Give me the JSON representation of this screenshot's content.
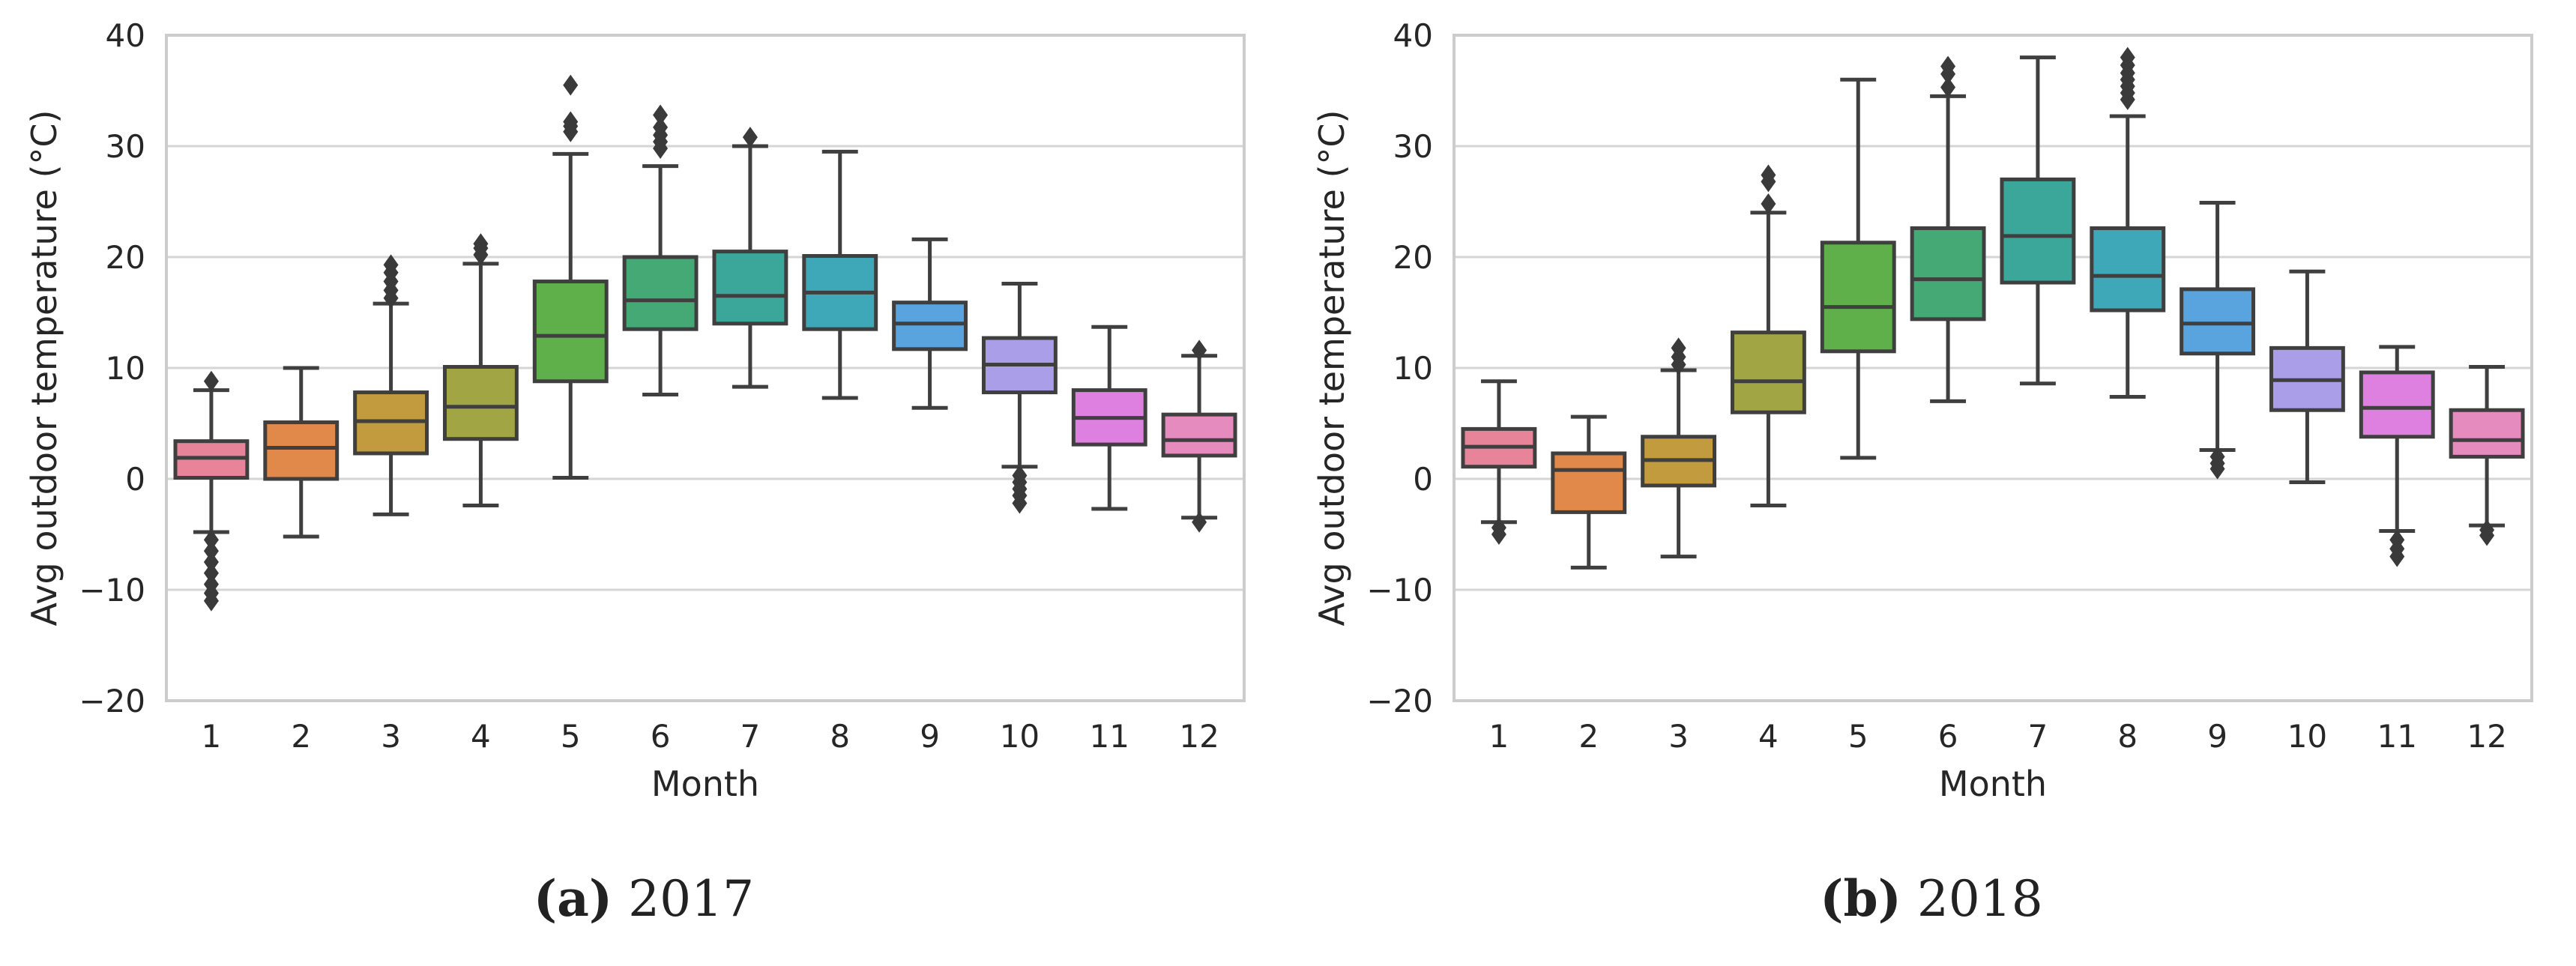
{
  "chart_data": [
    {
      "type": "boxplot",
      "panel_label": "(a)",
      "caption": "2017",
      "xlabel": "Month",
      "ylabel": "Avg outdoor temperature (°C)",
      "ylim": [
        -20,
        40
      ],
      "yticks": [
        "−20",
        "−10",
        "0",
        "10",
        "20",
        "30",
        "40"
      ],
      "categories": [
        "1",
        "2",
        "3",
        "4",
        "5",
        "6",
        "7",
        "8",
        "9",
        "10",
        "11",
        "12"
      ],
      "grid": "horizontal",
      "boxes": [
        {
          "month": "1",
          "color": "#e8849a",
          "whislo": -4.8,
          "q1": 0.1,
          "median": 1.9,
          "q3": 3.4,
          "whishi": 8.0,
          "fliers": [
            8.8,
            -5.5,
            -6.5,
            -7.5,
            -8.5,
            -9.5,
            -10.3,
            -11.0
          ]
        },
        {
          "month": "2",
          "color": "#e0894a",
          "whislo": -5.2,
          "q1": 0.0,
          "median": 2.8,
          "q3": 5.1,
          "whishi": 10.0,
          "fliers": []
        },
        {
          "month": "3",
          "color": "#c29b3e",
          "whislo": -3.2,
          "q1": 2.3,
          "median": 5.2,
          "q3": 7.8,
          "whishi": 15.8,
          "fliers": [
            16.3,
            17.0,
            17.8,
            18.6,
            19.3
          ]
        },
        {
          "month": "4",
          "color": "#a2a543",
          "whislo": -2.4,
          "q1": 3.6,
          "median": 6.5,
          "q3": 10.1,
          "whishi": 19.4,
          "fliers": [
            20.2,
            20.8,
            21.2
          ]
        },
        {
          "month": "5",
          "color": "#5faf4a",
          "whislo": 0.1,
          "q1": 8.8,
          "median": 12.9,
          "q3": 17.8,
          "whishi": 29.3,
          "fliers": [
            31.3,
            31.8,
            32.2,
            35.5
          ]
        },
        {
          "month": "6",
          "color": "#44a975",
          "whislo": 7.6,
          "q1": 13.5,
          "median": 16.1,
          "q3": 20.0,
          "whishi": 28.2,
          "fliers": [
            29.8,
            30.4,
            31.0,
            31.7,
            32.8
          ]
        },
        {
          "month": "7",
          "color": "#3aa79a",
          "whislo": 8.3,
          "q1": 14.0,
          "median": 16.5,
          "q3": 20.5,
          "whishi": 30.0,
          "fliers": [
            30.8
          ]
        },
        {
          "month": "8",
          "color": "#3ea7b8",
          "whislo": 7.3,
          "q1": 13.5,
          "median": 16.8,
          "q3": 20.1,
          "whishi": 29.5,
          "fliers": []
        },
        {
          "month": "9",
          "color": "#59a4de",
          "whislo": 6.4,
          "q1": 11.7,
          "median": 14.0,
          "q3": 15.9,
          "whishi": 21.6,
          "fliers": []
        },
        {
          "month": "10",
          "color": "#ab9ee8",
          "whislo": 1.1,
          "q1": 7.8,
          "median": 10.3,
          "q3": 12.7,
          "whishi": 17.6,
          "fliers": [
            0.3,
            -0.3,
            -0.9,
            -1.5,
            -2.2
          ]
        },
        {
          "month": "11",
          "color": "#dd80e0",
          "whislo": -2.7,
          "q1": 3.1,
          "median": 5.5,
          "q3": 8.0,
          "whishi": 13.7,
          "fliers": []
        },
        {
          "month": "12",
          "color": "#e58bbe",
          "whislo": -3.5,
          "q1": 2.1,
          "median": 3.5,
          "q3": 5.8,
          "whishi": 11.1,
          "fliers": [
            11.6,
            -3.9
          ]
        }
      ]
    },
    {
      "type": "boxplot",
      "panel_label": "(b)",
      "caption": "2018",
      "xlabel": "Month",
      "ylabel": "Avg outdoor temperature (°C)",
      "ylim": [
        -20,
        40
      ],
      "yticks": [
        "−20",
        "−10",
        "0",
        "10",
        "20",
        "30",
        "40"
      ],
      "categories": [
        "1",
        "2",
        "3",
        "4",
        "5",
        "6",
        "7",
        "8",
        "9",
        "10",
        "11",
        "12"
      ],
      "grid": "horizontal",
      "boxes": [
        {
          "month": "1",
          "color": "#e8849a",
          "whislo": -3.9,
          "q1": 1.1,
          "median": 2.9,
          "q3": 4.5,
          "whishi": 8.8,
          "fliers": [
            -4.4,
            -5.0
          ]
        },
        {
          "month": "2",
          "color": "#e0894a",
          "whislo": -8.0,
          "q1": -3.0,
          "median": 0.8,
          "q3": 2.3,
          "whishi": 5.6,
          "fliers": []
        },
        {
          "month": "3",
          "color": "#c29b3e",
          "whislo": -7.0,
          "q1": -0.6,
          "median": 1.7,
          "q3": 3.8,
          "whishi": 9.8,
          "fliers": [
            10.3,
            11.0,
            11.8
          ]
        },
        {
          "month": "4",
          "color": "#a2a543",
          "whislo": -2.4,
          "q1": 6.0,
          "median": 8.8,
          "q3": 13.2,
          "whishi": 24.0,
          "fliers": [
            24.8,
            26.8,
            27.4
          ]
        },
        {
          "month": "5",
          "color": "#5faf4a",
          "whislo": 1.9,
          "q1": 11.5,
          "median": 15.5,
          "q3": 21.3,
          "whishi": 36.0,
          "fliers": []
        },
        {
          "month": "6",
          "color": "#44a975",
          "whislo": 7.0,
          "q1": 14.4,
          "median": 18.0,
          "q3": 22.6,
          "whishi": 34.5,
          "fliers": [
            35.3,
            36.5,
            37.2
          ]
        },
        {
          "month": "7",
          "color": "#3aa79a",
          "whislo": 8.6,
          "q1": 17.7,
          "median": 21.9,
          "q3": 27.0,
          "whishi": 38.0,
          "fliers": []
        },
        {
          "month": "8",
          "color": "#3ea7b8",
          "whislo": 7.4,
          "q1": 15.2,
          "median": 18.3,
          "q3": 22.6,
          "whishi": 32.7,
          "fliers": [
            34.2,
            34.8,
            35.4,
            36.0,
            36.6,
            37.3,
            38.0
          ]
        },
        {
          "month": "9",
          "color": "#59a4de",
          "whislo": 2.6,
          "q1": 11.3,
          "median": 14.0,
          "q3": 17.1,
          "whishi": 24.9,
          "fliers": [
            2.0,
            1.4,
            0.9
          ]
        },
        {
          "month": "10",
          "color": "#ab9ee8",
          "whislo": -0.3,
          "q1": 6.2,
          "median": 8.9,
          "q3": 11.8,
          "whishi": 18.7,
          "fliers": []
        },
        {
          "month": "11",
          "color": "#dd80e0",
          "whislo": -4.7,
          "q1": 3.8,
          "median": 6.4,
          "q3": 9.6,
          "whishi": 11.9,
          "fliers": [
            -5.5,
            -6.3,
            -7.0
          ]
        },
        {
          "month": "12",
          "color": "#e58bbe",
          "whislo": -4.2,
          "q1": 2.0,
          "median": 3.5,
          "q3": 6.2,
          "whishi": 10.1,
          "fliers": [
            -4.6,
            -5.1
          ]
        }
      ]
    }
  ]
}
